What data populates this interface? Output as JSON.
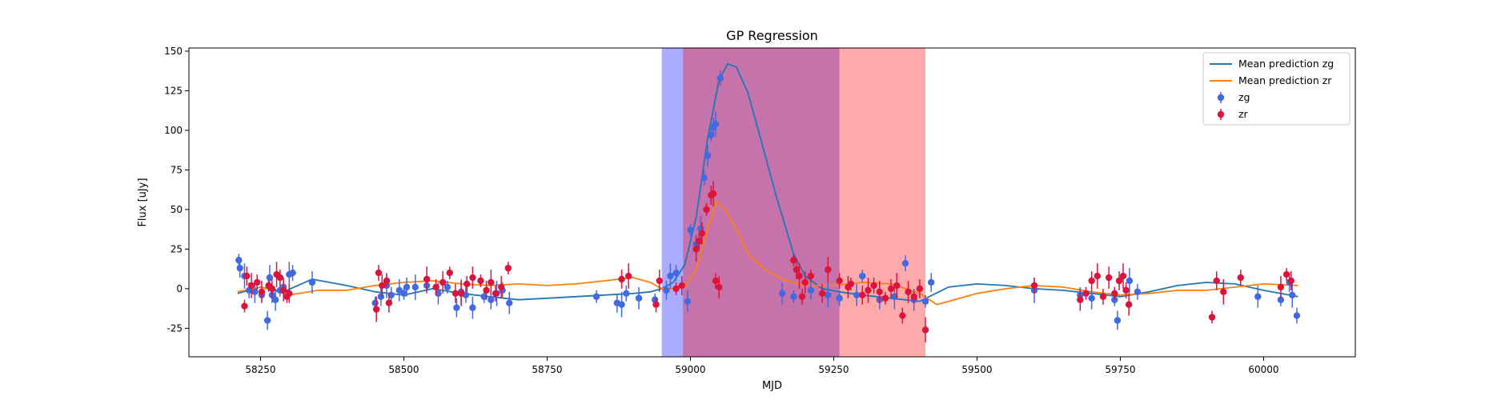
{
  "chart_data": {
    "type": "scatter",
    "title": "GP Regression",
    "xlabel": "MJD",
    "ylabel": "Flux [uJy]",
    "xlim": [
      58125,
      60160
    ],
    "ylim": [
      -43,
      152
    ],
    "x_ticks": [
      58250,
      58500,
      58750,
      59000,
      59250,
      59500,
      59750,
      60000
    ],
    "y_ticks": [
      -25,
      0,
      25,
      50,
      75,
      100,
      125,
      150
    ],
    "grid": false,
    "legend_position": "top-right",
    "shaded_regions": [
      {
        "x0": 58950,
        "x1": 59260,
        "color": "#0000ff",
        "opacity": 0.33
      },
      {
        "x0": 58987,
        "x1": 59410,
        "color": "#ff0000",
        "opacity": 0.33
      }
    ],
    "lines": [
      {
        "name": "Mean prediction zg",
        "color": "#1f77b4",
        "x": [
          58210,
          58250,
          58290,
          58340,
          58400,
          58450,
          58500,
          58550,
          58600,
          58650,
          58700,
          58750,
          58800,
          58850,
          58900,
          58930,
          58950,
          58970,
          58990,
          59010,
          59030,
          59050,
          59065,
          59080,
          59100,
          59120,
          59150,
          59180,
          59200,
          59230,
          59260,
          59300,
          59350,
          59400,
          59450,
          59500,
          59550,
          59600,
          59650,
          59700,
          59750,
          59800,
          59850,
          59900,
          59950,
          60000,
          60060
        ],
        "y": [
          -3,
          1,
          -2,
          6,
          2,
          -2,
          -4,
          0,
          -3,
          -5,
          -7,
          -6,
          -5,
          -4,
          -3,
          -2,
          0,
          4,
          15,
          45,
          95,
          132,
          142,
          140,
          124,
          98,
          58,
          22,
          8,
          0,
          -2,
          -4,
          -6,
          -8,
          1,
          3,
          2,
          0,
          -1,
          -3,
          -5,
          -2,
          2,
          4,
          3,
          -1,
          -5
        ]
      },
      {
        "name": "Mean prediction zr",
        "color": "#ff7f0e",
        "x": [
          58210,
          58250,
          58300,
          58350,
          58400,
          58450,
          58500,
          58550,
          58600,
          58650,
          58700,
          58750,
          58800,
          58850,
          58900,
          58930,
          58950,
          58970,
          58990,
          59010,
          59030,
          59045,
          59060,
          59080,
          59100,
          59130,
          59160,
          59200,
          59250,
          59300,
          59350,
          59400,
          59430,
          59460,
          59500,
          59550,
          59600,
          59650,
          59700,
          59750,
          59800,
          59850,
          59900,
          59950,
          60000,
          60060
        ],
        "y": [
          -2,
          1,
          -4,
          -1,
          -1,
          2,
          4,
          5,
          3,
          2,
          3,
          2,
          3,
          5,
          7,
          4,
          0,
          0,
          1,
          12,
          38,
          55,
          50,
          38,
          22,
          12,
          6,
          2,
          2,
          4,
          3,
          -3,
          -10,
          -7,
          -3,
          0,
          2,
          1,
          -2,
          -4,
          -3,
          -1,
          -1,
          1,
          3,
          2
        ]
      }
    ],
    "series": [
      {
        "name": "zg",
        "color": "#4169e1",
        "x": [
          58212,
          58214,
          58222,
          58230,
          58240,
          58252,
          58262,
          58266,
          58270,
          58276,
          58284,
          58290,
          58300,
          58306,
          58340,
          58450,
          58460,
          58470,
          58478,
          58492,
          58500,
          58505,
          58520,
          58540,
          58560,
          58576,
          58592,
          58600,
          58608,
          58620,
          58640,
          58652,
          58662,
          58672,
          58684,
          58836,
          58872,
          58880,
          58888,
          58910,
          58938,
          58958,
          58965,
          58975,
          58995,
          59000,
          59010,
          59018,
          59024,
          59030,
          59036,
          59040,
          59044,
          59052,
          59160,
          59180,
          59210,
          59240,
          59260,
          59290,
          59300,
          59330,
          59356,
          59375,
          59390,
          59410,
          59420,
          59600,
          59680,
          59700,
          59740,
          59745,
          59766,
          59780,
          59990,
          60030,
          60045,
          60050,
          60058
        ],
        "y": [
          18,
          13,
          8,
          -1,
          -2,
          -4,
          -20,
          7,
          -4,
          -7,
          -1,
          1,
          9,
          10,
          4,
          -9,
          -5,
          2,
          -4,
          -1,
          -3,
          1,
          1,
          2,
          -3,
          1,
          -12,
          -2,
          -4,
          -12,
          -5,
          -7,
          -3,
          -1,
          -9,
          -5,
          -9,
          -10,
          -3,
          -6,
          -7,
          -1,
          8,
          10,
          -8,
          37,
          28,
          38,
          70,
          84,
          97,
          102,
          104,
          133,
          -3,
          -5,
          -1,
          -4,
          -6,
          -4,
          8,
          -7,
          -5,
          16,
          -7,
          -8,
          4,
          -1,
          -4,
          -6,
          -7,
          -20,
          5,
          -2,
          -5,
          -7,
          4,
          -4,
          -17
        ]
      },
      {
        "name": "zr",
        "color": "#dc143c",
        "x": [
          58222,
          58226,
          58234,
          58244,
          58252,
          58264,
          58270,
          58278,
          58284,
          58290,
          58296,
          58300,
          58452,
          58456,
          58462,
          58470,
          58474,
          58540,
          58556,
          58568,
          58580,
          58590,
          58600,
          58610,
          58620,
          58634,
          58644,
          58652,
          58660,
          58670,
          58682,
          58880,
          58892,
          58940,
          58946,
          58975,
          58985,
          59010,
          59015,
          59020,
          59028,
          59036,
          59040,
          59044,
          59050,
          59180,
          59185,
          59190,
          59195,
          59200,
          59210,
          59230,
          59240,
          59260,
          59275,
          59280,
          59300,
          59310,
          59320,
          59330,
          59340,
          59350,
          59360,
          59370,
          59380,
          59390,
          59400,
          59410,
          59600,
          59680,
          59690,
          59700,
          59710,
          59720,
          59730,
          59740,
          59748,
          59755,
          59760,
          59765,
          59910,
          59918,
          59930,
          59960,
          60030,
          60040,
          60048
        ],
        "y": [
          -11,
          8,
          2,
          4,
          -2,
          2,
          0,
          9,
          7,
          -1,
          -5,
          -3,
          -13,
          10,
          2,
          5,
          -9,
          6,
          1,
          4,
          10,
          -3,
          -3,
          3,
          7,
          5,
          -1,
          4,
          -3,
          1,
          13,
          6,
          8,
          -10,
          5,
          0,
          2,
          25,
          30,
          35,
          50,
          59,
          60,
          5,
          1,
          18,
          12,
          8,
          -5,
          4,
          8,
          -3,
          12,
          5,
          1,
          3,
          -4,
          -1,
          2,
          -2,
          -6,
          0,
          2,
          -17,
          -2,
          -5,
          0,
          -26,
          2,
          -7,
          -3,
          5,
          8,
          -5,
          7,
          -3,
          5,
          8,
          -1,
          -10,
          -18,
          5,
          -2,
          7,
          1,
          9,
          5
        ]
      }
    ]
  }
}
